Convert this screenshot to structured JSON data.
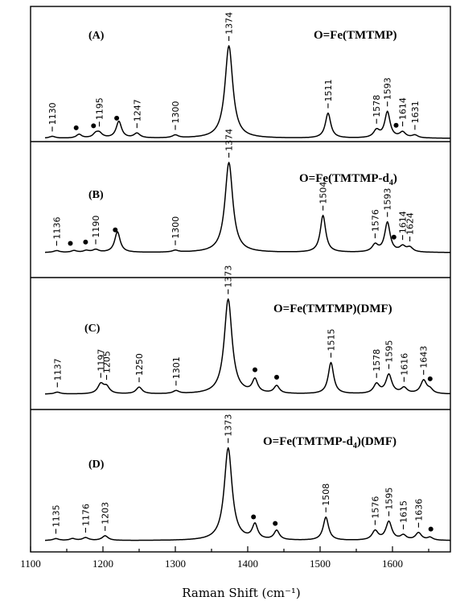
{
  "chart_data": {
    "type": "line",
    "xlabel": "Raman Shift (cm⁻¹)",
    "xlim": [
      1100,
      1680
    ],
    "xticks": [
      1100,
      1200,
      1300,
      1400,
      1500,
      1600
    ],
    "ylabel": "",
    "grid": false,
    "panels": [
      {
        "label": "(A)",
        "title": "O=Fe(TMTMP)",
        "peaks": [
          {
            "x": 1130,
            "label": "1130",
            "h": 0.02
          },
          {
            "x": 1195,
            "label": "1195",
            "h": 0.05
          },
          {
            "x": 1247,
            "label": "1247",
            "h": 0.05
          },
          {
            "x": 1300,
            "label": "1300",
            "h": 0.03
          },
          {
            "x": 1374,
            "label": "1374",
            "h": 1.0
          },
          {
            "x": 1511,
            "label": "1511",
            "h": 0.27
          },
          {
            "x": 1578,
            "label": "1578",
            "h": 0.08
          },
          {
            "x": 1593,
            "label": "1593",
            "h": 0.28
          },
          {
            "x": 1614,
            "label": "1614",
            "h": 0.06
          },
          {
            "x": 1631,
            "label": "1631",
            "h": 0.03
          }
        ],
        "extra_bands": [
          {
            "x": 1167,
            "h": 0.04
          },
          {
            "x": 1190,
            "h": 0.04
          },
          {
            "x": 1222,
            "h": 0.18
          }
        ],
        "markers": [
          1163,
          1187,
          1219,
          1605
        ]
      },
      {
        "label": "(B)",
        "title": "O=Fe(TMTMP-d",
        "title_sub": "4",
        "title_end": ")",
        "peaks": [
          {
            "x": 1136,
            "label": "1136",
            "h": 0.02
          },
          {
            "x": 1190,
            "label": "1190",
            "h": 0.03
          },
          {
            "x": 1300,
            "label": "1300",
            "h": 0.02
          },
          {
            "x": 1374,
            "label": "1374",
            "h": 1.0
          },
          {
            "x": 1504,
            "label": "1504",
            "h": 0.41
          },
          {
            "x": 1576,
            "label": "1576",
            "h": 0.08
          },
          {
            "x": 1593,
            "label": "1593",
            "h": 0.33
          },
          {
            "x": 1614,
            "label": "1614",
            "h": 0.06
          },
          {
            "x": 1624,
            "label": "1624",
            "h": 0.05
          }
        ],
        "extra_bands": [
          {
            "x": 1160,
            "h": 0.02
          },
          {
            "x": 1177,
            "h": 0.02
          },
          {
            "x": 1220,
            "h": 0.23
          }
        ],
        "markers": [
          1155,
          1176,
          1217,
          1602
        ]
      },
      {
        "label": "(C)",
        "title": "O=Fe(TMTMP)(DMF)",
        "peaks": [
          {
            "x": 1137,
            "label": "1137",
            "h": 0.02
          },
          {
            "x": 1197,
            "label": "1197",
            "h": 0.1
          },
          {
            "x": 1205,
            "label": "1205",
            "h": 0.07
          },
          {
            "x": 1250,
            "label": "1250",
            "h": 0.07
          },
          {
            "x": 1301,
            "label": "1301",
            "h": 0.03
          },
          {
            "x": 1373,
            "label": "1373",
            "h": 1.0
          },
          {
            "x": 1515,
            "label": "1515",
            "h": 0.33
          },
          {
            "x": 1578,
            "label": "1578",
            "h": 0.1
          },
          {
            "x": 1595,
            "label": "1595",
            "h": 0.2
          },
          {
            "x": 1616,
            "label": "1616",
            "h": 0.06
          },
          {
            "x": 1643,
            "label": "1643",
            "h": 0.14
          }
        ],
        "extra_bands": [
          {
            "x": 1410,
            "h": 0.14
          },
          {
            "x": 1440,
            "h": 0.08
          },
          {
            "x": 1652,
            "h": 0.04
          }
        ],
        "markers": [
          1410,
          1440,
          1652
        ]
      },
      {
        "label": "(D)",
        "title": "O=Fe(TMTMP-d",
        "title_sub": "4",
        "title_end": ")(DMF)",
        "peaks": [
          {
            "x": 1135,
            "label": "1135",
            "h": 0.02
          },
          {
            "x": 1176,
            "label": "1176",
            "h": 0.03
          },
          {
            "x": 1203,
            "label": "1203",
            "h": 0.05
          },
          {
            "x": 1373,
            "label": "1373",
            "h": 1.0
          },
          {
            "x": 1508,
            "label": "1508",
            "h": 0.25
          },
          {
            "x": 1576,
            "label": "1576",
            "h": 0.1
          },
          {
            "x": 1595,
            "label": "1595",
            "h": 0.2
          },
          {
            "x": 1615,
            "label": "1615",
            "h": 0.05
          },
          {
            "x": 1636,
            "label": "1636",
            "h": 0.08
          }
        ],
        "extra_bands": [
          {
            "x": 1158,
            "h": 0.02
          },
          {
            "x": 1410,
            "h": 0.16
          },
          {
            "x": 1440,
            "h": 0.1
          },
          {
            "x": 1652,
            "h": 0.03
          }
        ],
        "markers": [
          1408,
          1438,
          1653
        ]
      }
    ]
  }
}
